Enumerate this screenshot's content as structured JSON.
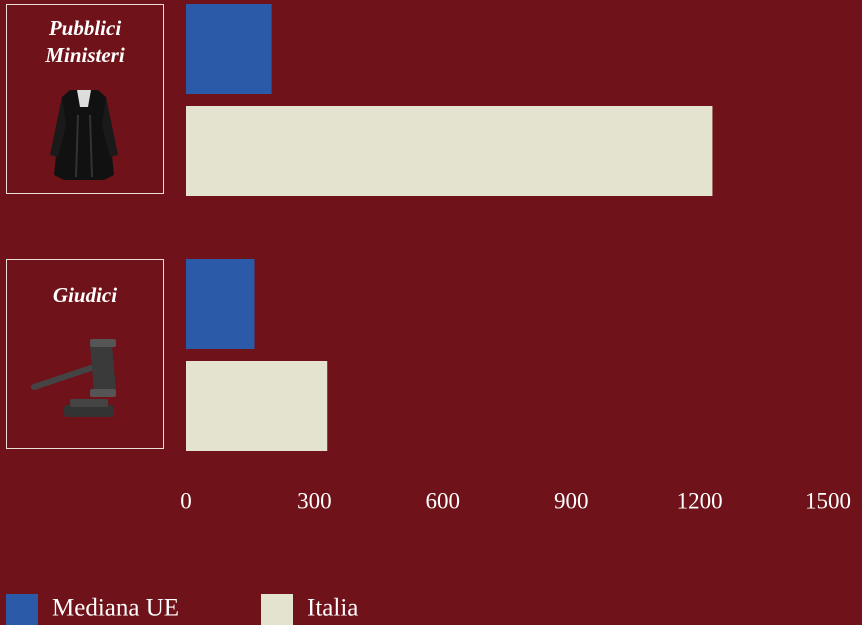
{
  "chart_data": {
    "type": "bar",
    "orientation": "horizontal",
    "categories": [
      "Pubblici Ministeri",
      "Giudici"
    ],
    "series": [
      {
        "name": "Mediana UE",
        "color": "#2b5aa8",
        "values": [
          200,
          160
        ]
      },
      {
        "name": "Italia",
        "color": "#e3e3cf",
        "values": [
          1230,
          330
        ]
      }
    ],
    "xlim": [
      0,
      1500
    ],
    "xticks": [
      0,
      300,
      600,
      900,
      1200,
      1500
    ],
    "grid": false,
    "legend": "bottom-left"
  }
}
